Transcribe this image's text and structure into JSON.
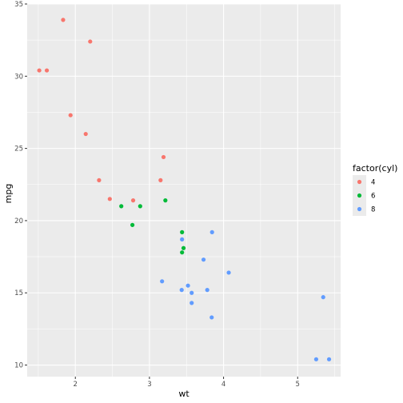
{
  "chart_data": {
    "type": "scatter",
    "title": "",
    "xlabel": "wt",
    "ylabel": "mpg",
    "xlim": [
      1.35,
      5.58
    ],
    "ylim": [
      9.2,
      35.0
    ],
    "x_ticks": [
      2,
      3,
      4,
      5
    ],
    "y_ticks": [
      10,
      15,
      20,
      25,
      30,
      35
    ],
    "grid": true,
    "legend": {
      "title": "factor(cyl)",
      "placement": "right",
      "entries": [
        {
          "label": "4",
          "color": "#F8766D"
        },
        {
          "label": "6",
          "color": "#00BA38"
        },
        {
          "label": "8",
          "color": "#619CFF"
        }
      ]
    },
    "series": [
      {
        "name": "4",
        "color": "#F8766D",
        "points": [
          {
            "x": 2.32,
            "y": 22.8
          },
          {
            "x": 3.19,
            "y": 24.4
          },
          {
            "x": 3.15,
            "y": 22.8
          },
          {
            "x": 2.2,
            "y": 32.4
          },
          {
            "x": 1.615,
            "y": 30.4
          },
          {
            "x": 1.835,
            "y": 33.9
          },
          {
            "x": 2.465,
            "y": 21.5
          },
          {
            "x": 1.935,
            "y": 27.3
          },
          {
            "x": 2.14,
            "y": 26.0
          },
          {
            "x": 1.513,
            "y": 30.4
          },
          {
            "x": 2.78,
            "y": 21.4
          }
        ]
      },
      {
        "name": "6",
        "color": "#00BA38",
        "points": [
          {
            "x": 2.62,
            "y": 21.0
          },
          {
            "x": 2.875,
            "y": 21.0
          },
          {
            "x": 3.215,
            "y": 21.4
          },
          {
            "x": 3.46,
            "y": 18.1
          },
          {
            "x": 3.44,
            "y": 19.2
          },
          {
            "x": 3.44,
            "y": 17.8
          },
          {
            "x": 2.77,
            "y": 19.7
          }
        ]
      },
      {
        "name": "8",
        "color": "#619CFF",
        "points": [
          {
            "x": 3.44,
            "y": 18.7
          },
          {
            "x": 3.57,
            "y": 14.3
          },
          {
            "x": 4.07,
            "y": 16.4
          },
          {
            "x": 3.73,
            "y": 17.3
          },
          {
            "x": 3.78,
            "y": 15.2
          },
          {
            "x": 5.25,
            "y": 10.4
          },
          {
            "x": 5.424,
            "y": 10.4
          },
          {
            "x": 5.345,
            "y": 14.7
          },
          {
            "x": 3.52,
            "y": 15.5
          },
          {
            "x": 3.435,
            "y": 15.2
          },
          {
            "x": 3.84,
            "y": 13.3
          },
          {
            "x": 3.845,
            "y": 19.2
          },
          {
            "x": 3.17,
            "y": 15.8
          },
          {
            "x": 3.57,
            "y": 15.0
          }
        ]
      }
    ]
  }
}
